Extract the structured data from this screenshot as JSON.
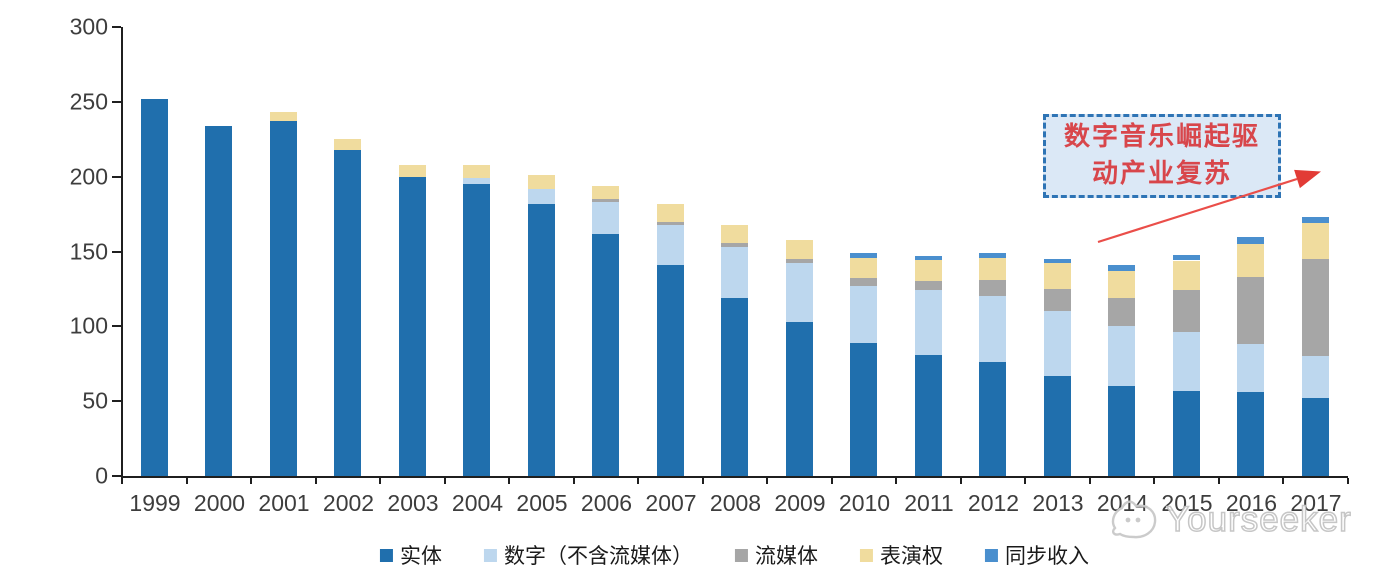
{
  "chart_data": {
    "type": "bar",
    "subtype": "stacked-vertical",
    "title": "",
    "xlabel": "",
    "ylabel": "",
    "categories": [
      "1999",
      "2000",
      "2001",
      "2002",
      "2003",
      "2004",
      "2005",
      "2006",
      "2007",
      "2008",
      "2009",
      "2010",
      "2011",
      "2012",
      "2013",
      "2014",
      "2015",
      "2016",
      "2017"
    ],
    "series": [
      {
        "name": "实体",
        "color": "#206FAD",
        "values": [
          252,
          234,
          237,
          218,
          200,
          195,
          182,
          162,
          141,
          119,
          103,
          89,
          81,
          76,
          67,
          60,
          57,
          56,
          52
        ]
      },
      {
        "name": "数字（不含流媒体）",
        "color": "#BDD7EE",
        "values": [
          0,
          0,
          0,
          0,
          0,
          4,
          10,
          21,
          27,
          34,
          39,
          38,
          43,
          44,
          43,
          40,
          39,
          32,
          28
        ]
      },
      {
        "name": "流媒体",
        "color": "#A6A6A6",
        "values": [
          0,
          0,
          0,
          0,
          0,
          0,
          0,
          2,
          2,
          3,
          3,
          5,
          6,
          11,
          15,
          19,
          28,
          45,
          65
        ]
      },
      {
        "name": "表演权",
        "color": "#F0DC9E",
        "values": [
          0,
          0,
          6,
          7,
          8,
          9,
          9,
          9,
          12,
          12,
          13,
          14,
          14,
          15,
          17,
          18,
          20,
          22,
          24
        ]
      },
      {
        "name": "同步收入",
        "color": "#4A8FCE",
        "values": [
          0,
          0,
          0,
          0,
          0,
          0,
          0,
          0,
          0,
          0,
          0,
          3,
          3,
          3,
          3,
          4,
          4,
          5,
          4
        ]
      }
    ],
    "ylim": [
      0,
      300
    ],
    "ytick_step": 50,
    "yticks": [
      0,
      50,
      100,
      150,
      200,
      250,
      300
    ],
    "grid": false,
    "legend_position": "bottom"
  },
  "annotation": {
    "line1": "数字音乐崛起驱",
    "line2": "动产业复苏",
    "arrow_color": "#EA4E49",
    "box_border_color": "#2E74B5",
    "box_fill_color": "#DBE8F6",
    "text_color": "#D8464B"
  },
  "watermark": {
    "text": "Yourseeker"
  },
  "colors": {
    "axis": "#1F1F1F",
    "tick_label": "#3D3D3D"
  }
}
